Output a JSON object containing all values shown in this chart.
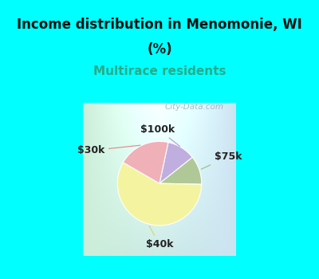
{
  "title_line1": "Income distribution in Menomonie, WI",
  "title_line2": "(%)",
  "subtitle": "Multirace residents",
  "title_fontsize": 12,
  "subtitle_fontsize": 11,
  "title_color": "#111111",
  "subtitle_color": "#2aaa88",
  "bg_color": "#00ffff",
  "chart_bg_topleft": "#d4ede0",
  "chart_bg_topright": "#ddeef8",
  "chart_bg_bottomleft": "#c8e8d8",
  "chart_bg_bottomright": "#d8eaf2",
  "slices": [
    {
      "label": "$100k",
      "value": 11,
      "color": "#c0aee0"
    },
    {
      "label": "$75k",
      "value": 11,
      "color": "#b0c898"
    },
    {
      "label": "$40k",
      "value": 58,
      "color": "#f4f4a0"
    },
    {
      "label": "$30k",
      "value": 20,
      "color": "#f0b0b8"
    }
  ],
  "watermark": "City-Data.com",
  "startangle": 78,
  "label_fontsize": 9,
  "line_colors": {
    "$100k": "#c0a0d0",
    "$75k": "#a0c090",
    "$40k": "#d8d870",
    "$30k": "#e09090"
  }
}
